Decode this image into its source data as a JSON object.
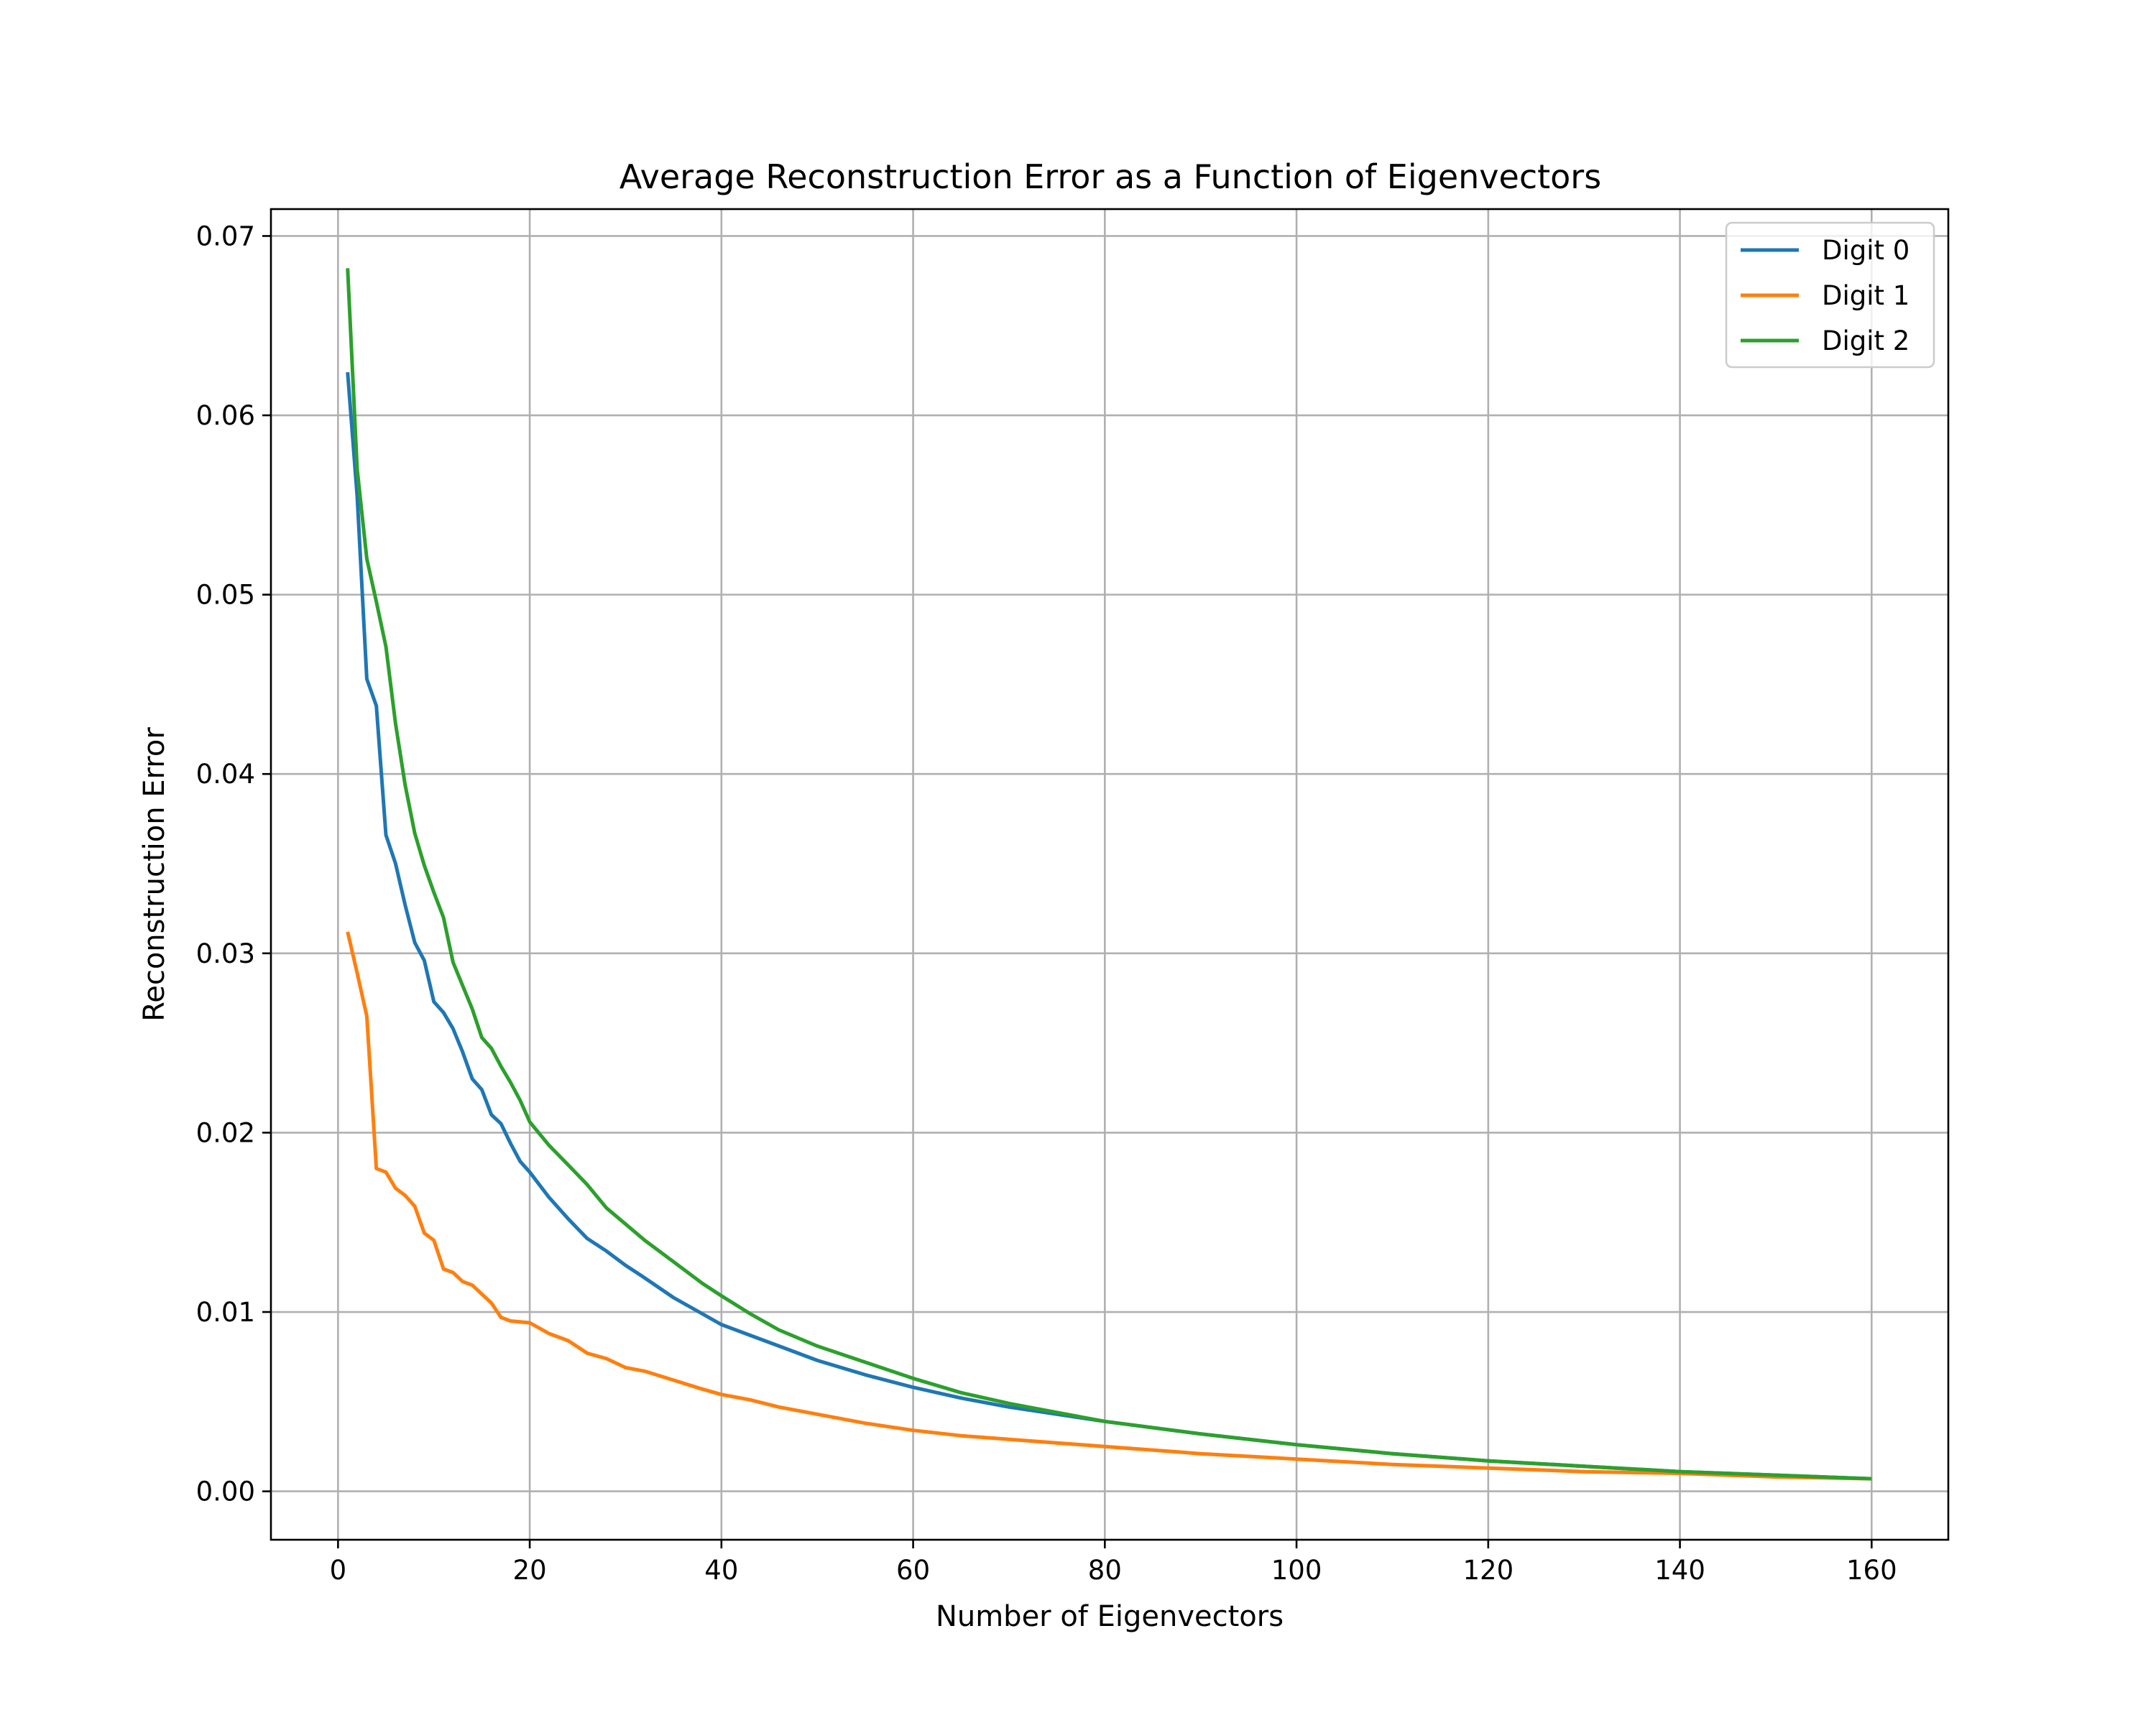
{
  "chart_data": {
    "type": "line",
    "title": "Average Reconstruction Error as a Function of Eigenvectors",
    "xlabel": "Number of Eigenvectors",
    "ylabel": "Reconstruction Error",
    "xlim": [
      -7,
      168
    ],
    "ylim": [
      -0.0027,
      0.0715
    ],
    "xticks": [
      0,
      20,
      40,
      60,
      80,
      100,
      120,
      140,
      160
    ],
    "xtick_labels": [
      "0",
      "20",
      "40",
      "60",
      "80",
      "100",
      "120",
      "140",
      "160"
    ],
    "yticks": [
      0.0,
      0.01,
      0.02,
      0.03,
      0.04,
      0.05,
      0.06,
      0.07
    ],
    "ytick_labels": [
      "0.00",
      "0.01",
      "0.02",
      "0.03",
      "0.04",
      "0.05",
      "0.06",
      "0.07"
    ],
    "grid": true,
    "legend_position": "top-right",
    "series": [
      {
        "name": "Digit 0",
        "color": "#1f77b4",
        "points": [
          [
            1,
            0.0624
          ],
          [
            2,
            0.0555
          ],
          [
            3,
            0.0453
          ],
          [
            4,
            0.0438
          ],
          [
            5,
            0.0366
          ],
          [
            6,
            0.035
          ],
          [
            7,
            0.0327
          ],
          [
            8,
            0.0306
          ],
          [
            9,
            0.0296
          ],
          [
            10,
            0.0273
          ],
          [
            11,
            0.0267
          ],
          [
            12,
            0.0258
          ],
          [
            13,
            0.0245
          ],
          [
            14,
            0.023
          ],
          [
            15,
            0.0224
          ],
          [
            16,
            0.021
          ],
          [
            17,
            0.0205
          ],
          [
            18,
            0.0194
          ],
          [
            19,
            0.0184
          ],
          [
            20,
            0.0178
          ],
          [
            22,
            0.0164
          ],
          [
            24,
            0.0152
          ],
          [
            26,
            0.0141
          ],
          [
            28,
            0.0134
          ],
          [
            30,
            0.0126
          ],
          [
            32,
            0.0119
          ],
          [
            35,
            0.0108
          ],
          [
            38,
            0.0099
          ],
          [
            40,
            0.0093
          ],
          [
            43,
            0.0087
          ],
          [
            46,
            0.0081
          ],
          [
            50,
            0.0073
          ],
          [
            55,
            0.0065
          ],
          [
            60,
            0.0058
          ],
          [
            65,
            0.0052
          ],
          [
            70,
            0.0047
          ],
          [
            75,
            0.0043
          ],
          [
            80,
            0.0039
          ],
          [
            90,
            0.0032
          ],
          [
            100,
            0.0026
          ],
          [
            110,
            0.0021
          ],
          [
            120,
            0.0017
          ],
          [
            130,
            0.0014
          ],
          [
            140,
            0.0011
          ],
          [
            150,
            0.0009
          ],
          [
            160,
            0.0007
          ]
        ]
      },
      {
        "name": "Digit 1",
        "color": "#ff7f0e",
        "points": [
          [
            1,
            0.0312
          ],
          [
            2,
            0.0289
          ],
          [
            3,
            0.0265
          ],
          [
            4,
            0.018
          ],
          [
            5,
            0.0178
          ],
          [
            6,
            0.0169
          ],
          [
            7,
            0.0165
          ],
          [
            8,
            0.0159
          ],
          [
            9,
            0.0144
          ],
          [
            10,
            0.014
          ],
          [
            11,
            0.0124
          ],
          [
            12,
            0.0122
          ],
          [
            13,
            0.0117
          ],
          [
            14,
            0.0115
          ],
          [
            15,
            0.011
          ],
          [
            16,
            0.0105
          ],
          [
            17,
            0.0097
          ],
          [
            18,
            0.0095
          ],
          [
            20,
            0.0094
          ],
          [
            22,
            0.0088
          ],
          [
            24,
            0.0084
          ],
          [
            26,
            0.0077
          ],
          [
            28,
            0.0074
          ],
          [
            30,
            0.0069
          ],
          [
            32,
            0.0067
          ],
          [
            35,
            0.0062
          ],
          [
            38,
            0.0057
          ],
          [
            40,
            0.0054
          ],
          [
            43,
            0.0051
          ],
          [
            46,
            0.0047
          ],
          [
            50,
            0.0043
          ],
          [
            55,
            0.0038
          ],
          [
            60,
            0.0034
          ],
          [
            65,
            0.0031
          ],
          [
            70,
            0.0029
          ],
          [
            75,
            0.0027
          ],
          [
            80,
            0.0025
          ],
          [
            90,
            0.0021
          ],
          [
            100,
            0.0018
          ],
          [
            110,
            0.0015
          ],
          [
            120,
            0.0013
          ],
          [
            130,
            0.0011
          ],
          [
            140,
            0.001
          ],
          [
            150,
            0.0008
          ],
          [
            160,
            0.0007
          ]
        ]
      },
      {
        "name": "Digit 2",
        "color": "#2ca02c",
        "points": [
          [
            1,
            0.0682
          ],
          [
            2,
            0.057
          ],
          [
            3,
            0.052
          ],
          [
            4,
            0.0496
          ],
          [
            5,
            0.0471
          ],
          [
            6,
            0.0428
          ],
          [
            7,
            0.0394
          ],
          [
            8,
            0.0367
          ],
          [
            9,
            0.0349
          ],
          [
            10,
            0.0334
          ],
          [
            11,
            0.032
          ],
          [
            12,
            0.0295
          ],
          [
            13,
            0.0282
          ],
          [
            14,
            0.0269
          ],
          [
            15,
            0.0253
          ],
          [
            16,
            0.0247
          ],
          [
            17,
            0.0237
          ],
          [
            18,
            0.0228
          ],
          [
            19,
            0.0218
          ],
          [
            20,
            0.0206
          ],
          [
            22,
            0.0193
          ],
          [
            24,
            0.0182
          ],
          [
            26,
            0.0171
          ],
          [
            28,
            0.0158
          ],
          [
            30,
            0.0149
          ],
          [
            32,
            0.014
          ],
          [
            35,
            0.0128
          ],
          [
            38,
            0.0116
          ],
          [
            40,
            0.0109
          ],
          [
            43,
            0.0099
          ],
          [
            46,
            0.009
          ],
          [
            50,
            0.0081
          ],
          [
            55,
            0.0072
          ],
          [
            60,
            0.0063
          ],
          [
            65,
            0.0055
          ],
          [
            70,
            0.0049
          ],
          [
            75,
            0.0044
          ],
          [
            80,
            0.0039
          ],
          [
            90,
            0.0032
          ],
          [
            100,
            0.0026
          ],
          [
            110,
            0.0021
          ],
          [
            120,
            0.0017
          ],
          [
            130,
            0.0014
          ],
          [
            140,
            0.0011
          ],
          [
            150,
            0.0009
          ],
          [
            160,
            0.0007
          ]
        ]
      }
    ]
  }
}
